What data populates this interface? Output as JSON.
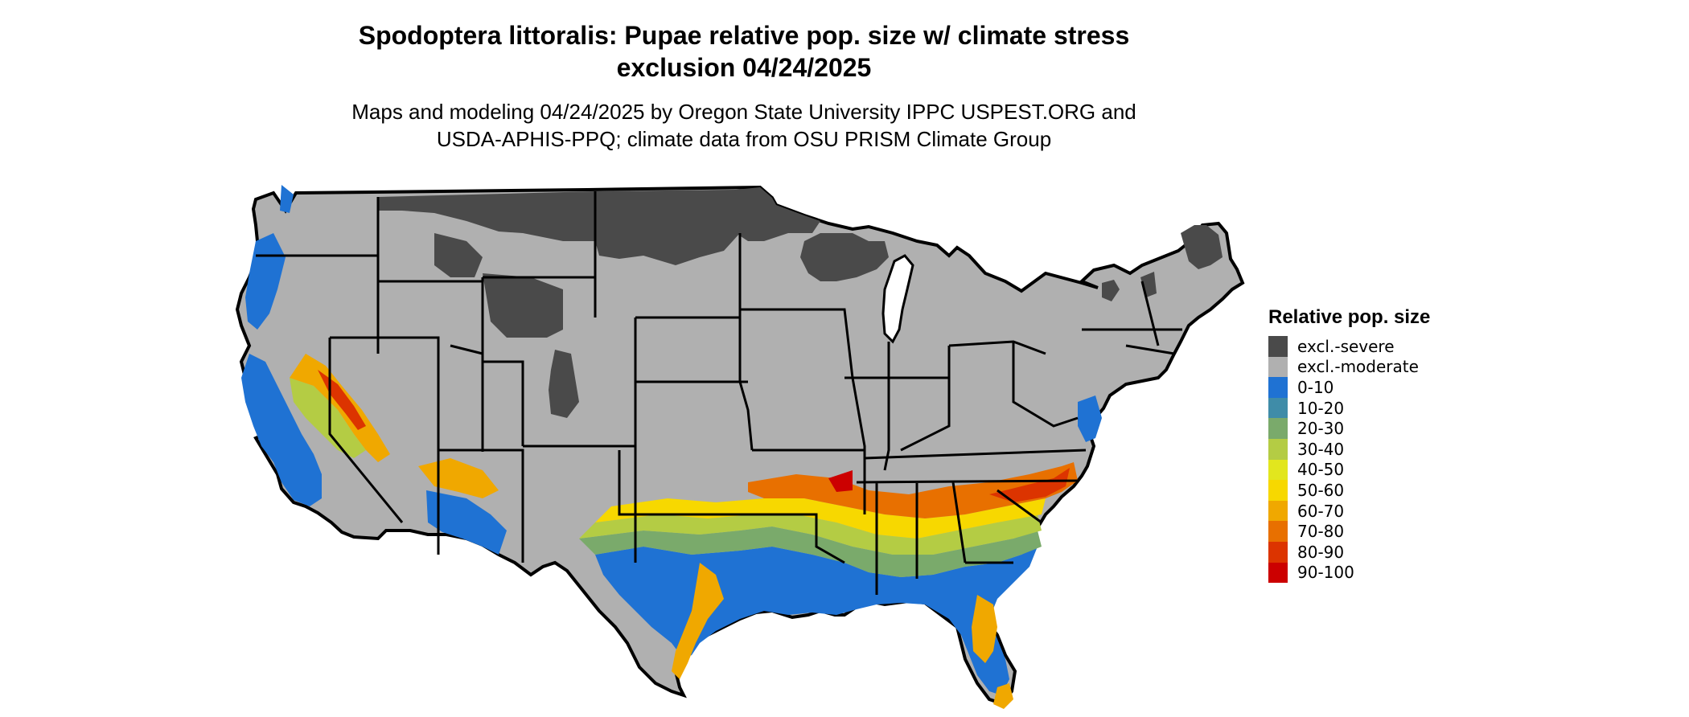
{
  "title_line1": "Spodoptera littoralis: Pupae relative pop. size w/ climate stress",
  "title_line2": "exclusion 04/24/2025",
  "subtitle_line1": "Maps and modeling 04/24/2025 by Oregon State University IPPC USPEST.ORG and",
  "subtitle_line2": "USDA-APHIS-PPQ; climate data from OSU PRISM Climate Group",
  "legend": {
    "title": "Relative pop. size",
    "items": [
      {
        "label": "excl.-severe",
        "color": "#4a4a4a"
      },
      {
        "label": "excl.-moderate",
        "color": "#b0b0b0"
      },
      {
        "label": "0-10",
        "color": "#1f72d3"
      },
      {
        "label": "10-20",
        "color": "#3f8ca8"
      },
      {
        "label": "20-30",
        "color": "#7aaa6b"
      },
      {
        "label": "30-40",
        "color": "#b4cc44"
      },
      {
        "label": "40-50",
        "color": "#e2e61e"
      },
      {
        "label": "50-60",
        "color": "#f7d800"
      },
      {
        "label": "60-70",
        "color": "#f0a800"
      },
      {
        "label": "70-80",
        "color": "#e87000"
      },
      {
        "label": "80-90",
        "color": "#dc3400"
      },
      {
        "label": "90-100",
        "color": "#cc0000"
      }
    ]
  }
}
